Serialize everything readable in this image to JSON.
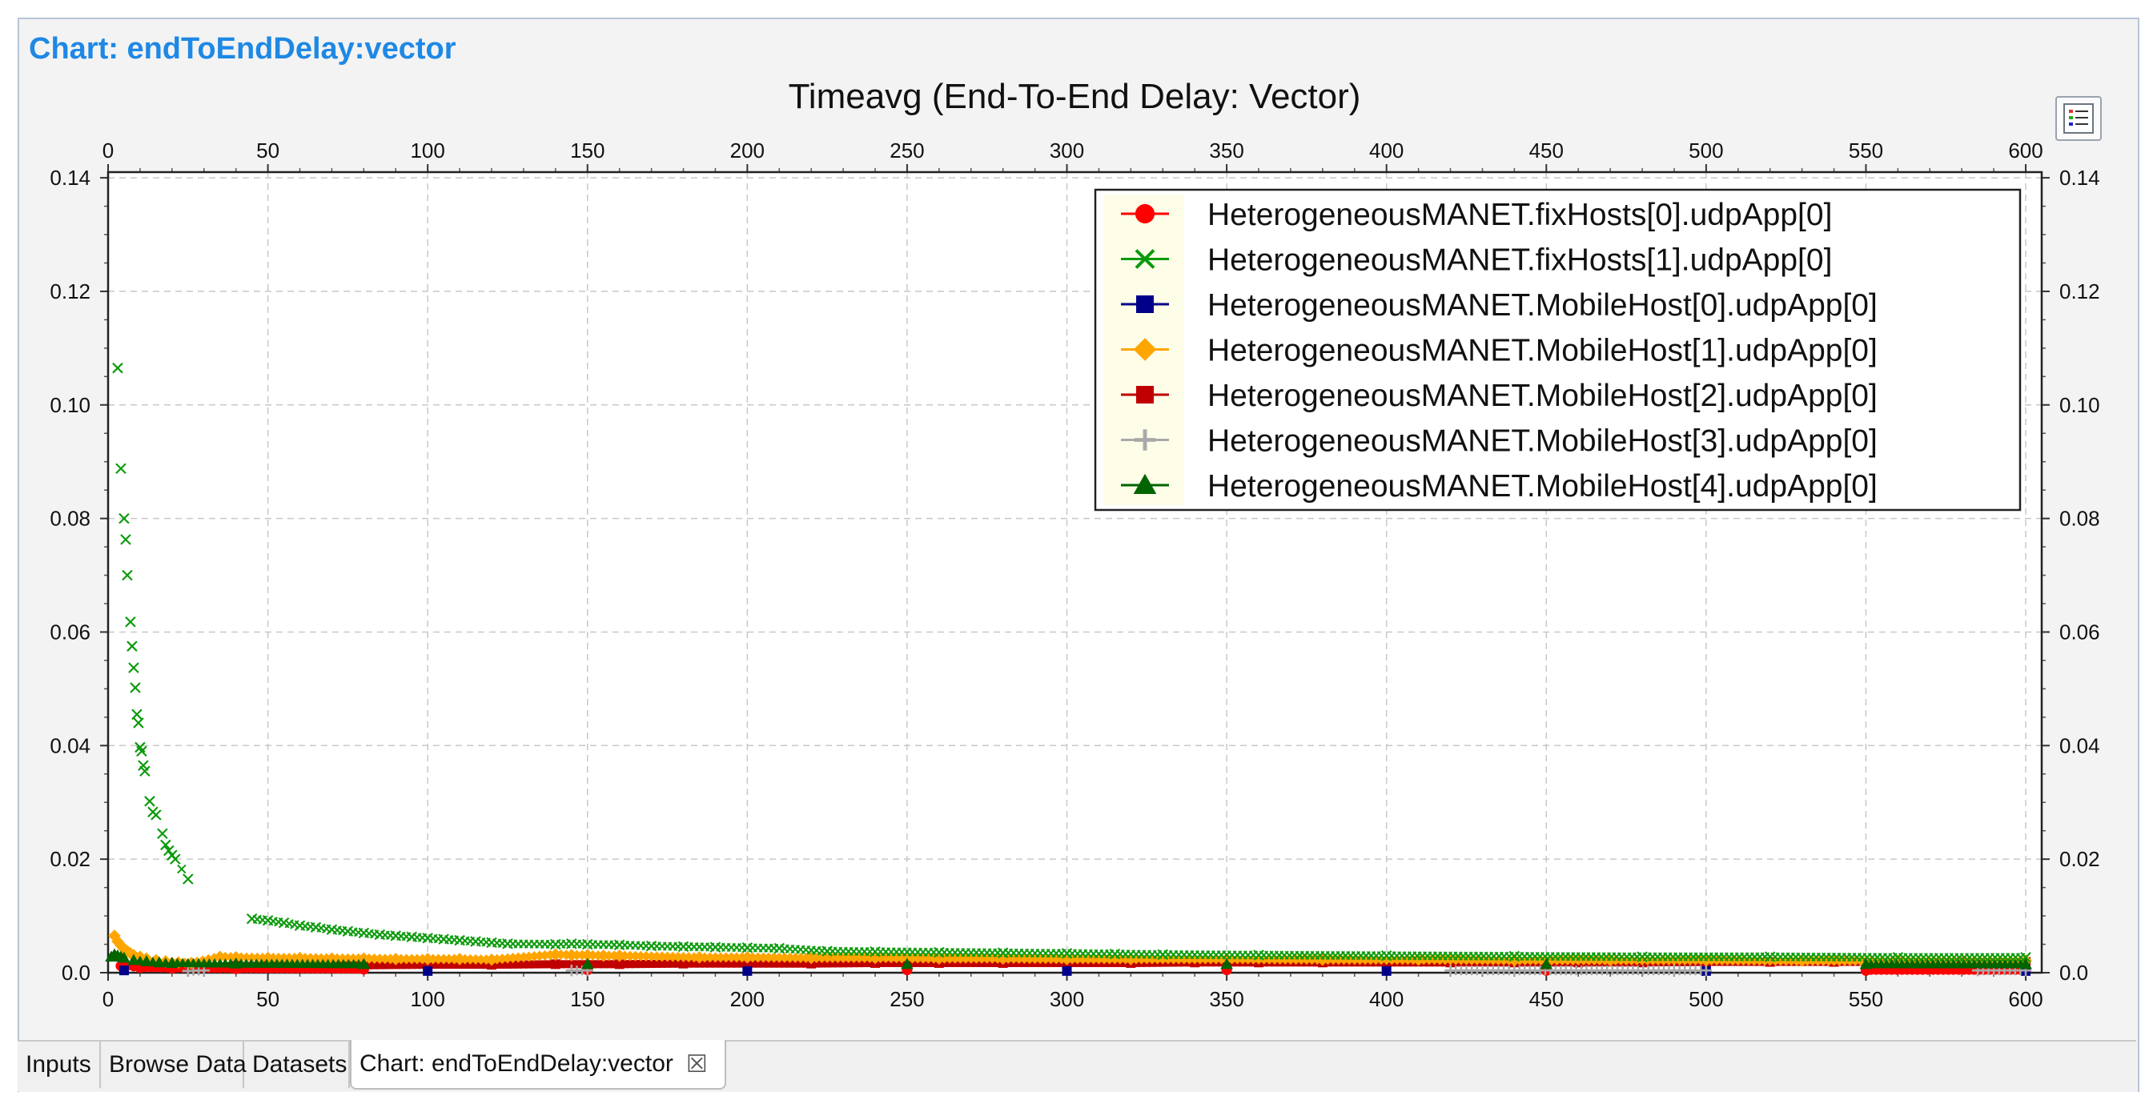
{
  "chart_heading": "Chart: endToEndDelay:vector",
  "legend_button_icon": "legend-list-icon",
  "tabs": [
    {
      "label": "Inputs"
    },
    {
      "label": "Browse Data"
    },
    {
      "label": "Datasets"
    },
    {
      "label": "Chart: endToEndDelay:vector",
      "active": true,
      "close_icon": "close-icon",
      "close_glyph": "☒"
    }
  ],
  "chart_data": {
    "type": "scatter",
    "title": "Timeavg (End-To-End Delay: Vector)",
    "xlabel": "",
    "ylabel": "",
    "xlim": [
      0,
      605
    ],
    "ylim": [
      0,
      0.141
    ],
    "x_ticks": [
      0,
      50,
      100,
      150,
      200,
      250,
      300,
      350,
      400,
      450,
      500,
      550,
      600
    ],
    "y_ticks": [
      "0.0",
      "0.02",
      "0.04",
      "0.06",
      "0.08",
      "0.10",
      "0.12",
      "0.14"
    ],
    "grid": true,
    "legend_position": "top-right",
    "series": [
      {
        "name": "HeterogeneousMANET.fixHosts[0].udpApp[0]",
        "color": "#ff0000",
        "marker": "circle",
        "points": [
          [
            4,
            0.0012
          ],
          [
            10,
            0.0009
          ],
          [
            20,
            0.0008
          ],
          [
            40,
            0.0007
          ],
          [
            80,
            0.0006
          ],
          [
            150,
            0.0005
          ],
          [
            250,
            0.0005
          ],
          [
            350,
            0.0005
          ],
          [
            450,
            0.0004
          ],
          [
            550,
            0.0004
          ],
          [
            600,
            0.0004
          ]
        ]
      },
      {
        "name": "HeterogeneousMANET.fixHosts[1].udpApp[0]",
        "color": "#0a9a0a",
        "marker": "x",
        "points": [
          [
            3,
            0.1065
          ],
          [
            4,
            0.0888
          ],
          [
            5,
            0.08
          ],
          [
            5.5,
            0.0763
          ],
          [
            6,
            0.07
          ],
          [
            7,
            0.0618
          ],
          [
            7.5,
            0.0575
          ],
          [
            8,
            0.0537
          ],
          [
            8.5,
            0.0502
          ],
          [
            9,
            0.0455
          ],
          [
            9.5,
            0.044
          ],
          [
            10,
            0.0397
          ],
          [
            10.5,
            0.039
          ],
          [
            11,
            0.0365
          ],
          [
            11.5,
            0.0355
          ],
          [
            13,
            0.0302
          ],
          [
            14,
            0.0283
          ],
          [
            15,
            0.0278
          ],
          [
            17,
            0.0245
          ],
          [
            18,
            0.0225
          ],
          [
            19,
            0.0215
          ],
          [
            20,
            0.0207
          ],
          [
            21,
            0.02
          ],
          [
            25,
            0.0165
          ],
          [
            45,
            0.0095
          ],
          [
            50,
            0.0092
          ],
          [
            55,
            0.0088
          ],
          [
            60,
            0.0083
          ],
          [
            65,
            0.008
          ],
          [
            70,
            0.0076
          ],
          [
            75,
            0.0073
          ],
          [
            80,
            0.007
          ],
          [
            85,
            0.0067
          ],
          [
            90,
            0.0065
          ],
          [
            95,
            0.0063
          ],
          [
            100,
            0.0061
          ],
          [
            105,
            0.0059
          ],
          [
            110,
            0.0057
          ],
          [
            115,
            0.0055
          ],
          [
            120,
            0.0053
          ],
          [
            125,
            0.0051
          ],
          [
            140,
            0.005
          ],
          [
            145,
            0.0051
          ],
          [
            150,
            0.005
          ],
          [
            160,
            0.0049
          ],
          [
            170,
            0.0047
          ],
          [
            180,
            0.0046
          ],
          [
            190,
            0.0045
          ],
          [
            200,
            0.0044
          ],
          [
            210,
            0.0043
          ],
          [
            225,
            0.0038
          ],
          [
            240,
            0.0037
          ],
          [
            260,
            0.0036
          ],
          [
            280,
            0.0035
          ],
          [
            300,
            0.0034
          ],
          [
            315,
            0.0033
          ],
          [
            330,
            0.0032
          ],
          [
            360,
            0.0031
          ],
          [
            400,
            0.003
          ],
          [
            440,
            0.0029
          ],
          [
            480,
            0.0028
          ],
          [
            520,
            0.0028
          ],
          [
            560,
            0.0027
          ],
          [
            600,
            0.0027
          ]
        ]
      },
      {
        "name": "HeterogeneousMANET.MobileHost[0].udpApp[0]",
        "color": "#00008b",
        "marker": "square",
        "points": [
          [
            5,
            0.0004
          ],
          [
            100,
            0.0003
          ],
          [
            200,
            0.0003
          ],
          [
            300,
            0.0003
          ],
          [
            400,
            0.0003
          ],
          [
            500,
            0.0003
          ],
          [
            600,
            0.0003
          ]
        ]
      },
      {
        "name": "HeterogeneousMANET.MobileHost[1].udpApp[0]",
        "color": "#ffa500",
        "marker": "diamond",
        "points": [
          [
            2,
            0.0065
          ],
          [
            3,
            0.0055
          ],
          [
            4,
            0.0048
          ],
          [
            5,
            0.0042
          ],
          [
            6,
            0.0038
          ],
          [
            7,
            0.0034
          ],
          [
            8,
            0.0031
          ],
          [
            10,
            0.0028
          ],
          [
            12,
            0.0025
          ],
          [
            15,
            0.0022
          ],
          [
            18,
            0.002
          ],
          [
            22,
            0.0018
          ],
          [
            26,
            0.0017
          ],
          [
            35,
            0.0028
          ],
          [
            40,
            0.0027
          ],
          [
            50,
            0.0026
          ],
          [
            60,
            0.0026
          ],
          [
            70,
            0.0025
          ],
          [
            80,
            0.0025
          ],
          [
            90,
            0.0024
          ],
          [
            100,
            0.0024
          ],
          [
            110,
            0.0024
          ],
          [
            120,
            0.0023
          ],
          [
            140,
            0.0032
          ],
          [
            145,
            0.0031
          ],
          [
            150,
            0.0031
          ],
          [
            155,
            0.003
          ],
          [
            160,
            0.003
          ],
          [
            185,
            0.0027
          ],
          [
            200,
            0.0027
          ],
          [
            220,
            0.0026
          ],
          [
            240,
            0.0026
          ],
          [
            260,
            0.0025
          ],
          [
            280,
            0.0025
          ],
          [
            300,
            0.0024
          ],
          [
            320,
            0.0024
          ],
          [
            350,
            0.0024
          ],
          [
            380,
            0.0023
          ],
          [
            410,
            0.0023
          ],
          [
            440,
            0.0022
          ],
          [
            470,
            0.0022
          ],
          [
            500,
            0.0022
          ],
          [
            530,
            0.0021
          ],
          [
            560,
            0.0021
          ],
          [
            600,
            0.0021
          ]
        ]
      },
      {
        "name": "HeterogeneousMANET.MobileHost[2].udpApp[0]",
        "color": "#c00000",
        "marker": "square",
        "points": [
          [
            30,
            0.001
          ],
          [
            40,
            0.0012
          ],
          [
            50,
            0.0012
          ],
          [
            60,
            0.0013
          ],
          [
            80,
            0.0013
          ],
          [
            100,
            0.0014
          ],
          [
            120,
            0.0014
          ],
          [
            140,
            0.0015
          ],
          [
            160,
            0.0015
          ],
          [
            180,
            0.0016
          ],
          [
            200,
            0.0016
          ],
          [
            220,
            0.0016
          ],
          [
            240,
            0.0017
          ],
          [
            260,
            0.0017
          ],
          [
            280,
            0.0017
          ],
          [
            300,
            0.0017
          ],
          [
            320,
            0.0017
          ],
          [
            340,
            0.0018
          ],
          [
            360,
            0.0018
          ],
          [
            380,
            0.0018
          ],
          [
            400,
            0.0018
          ],
          [
            420,
            0.0018
          ],
          [
            440,
            0.0018
          ],
          [
            460,
            0.0018
          ],
          [
            480,
            0.0018
          ],
          [
            500,
            0.0019
          ],
          [
            520,
            0.0019
          ],
          [
            540,
            0.0019
          ],
          [
            560,
            0.0019
          ],
          [
            580,
            0.0019
          ],
          [
            600,
            0.0019
          ]
        ]
      },
      {
        "name": "HeterogeneousMANET.MobileHost[3].udpApp[0]",
        "color": "#a9a9a9",
        "marker": "plus",
        "points": [
          [
            25,
            0.0003
          ],
          [
            30,
            0.0004
          ],
          [
            145,
            0.0004
          ],
          [
            150,
            0.0004
          ],
          [
            420,
            0.0004
          ],
          [
            440,
            0.0004
          ],
          [
            490,
            0.0004
          ],
          [
            500,
            0.0004
          ],
          [
            585,
            0.0004
          ],
          [
            600,
            0.0004
          ]
        ]
      },
      {
        "name": "HeterogeneousMANET.MobileHost[4].udpApp[0]",
        "color": "#006400",
        "marker": "triangle",
        "points": [
          [
            1,
            0.0028
          ],
          [
            2,
            0.0032
          ],
          [
            3,
            0.003
          ],
          [
            4,
            0.0028
          ],
          [
            5,
            0.0026
          ],
          [
            8,
            0.0022
          ],
          [
            12,
            0.002
          ],
          [
            16,
            0.0018
          ],
          [
            20,
            0.0017
          ],
          [
            40,
            0.0016
          ],
          [
            80,
            0.0015
          ],
          [
            150,
            0.0015
          ],
          [
            250,
            0.0015
          ],
          [
            350,
            0.0015
          ],
          [
            450,
            0.0015
          ],
          [
            550,
            0.0015
          ],
          [
            600,
            0.0015
          ]
        ]
      }
    ]
  }
}
